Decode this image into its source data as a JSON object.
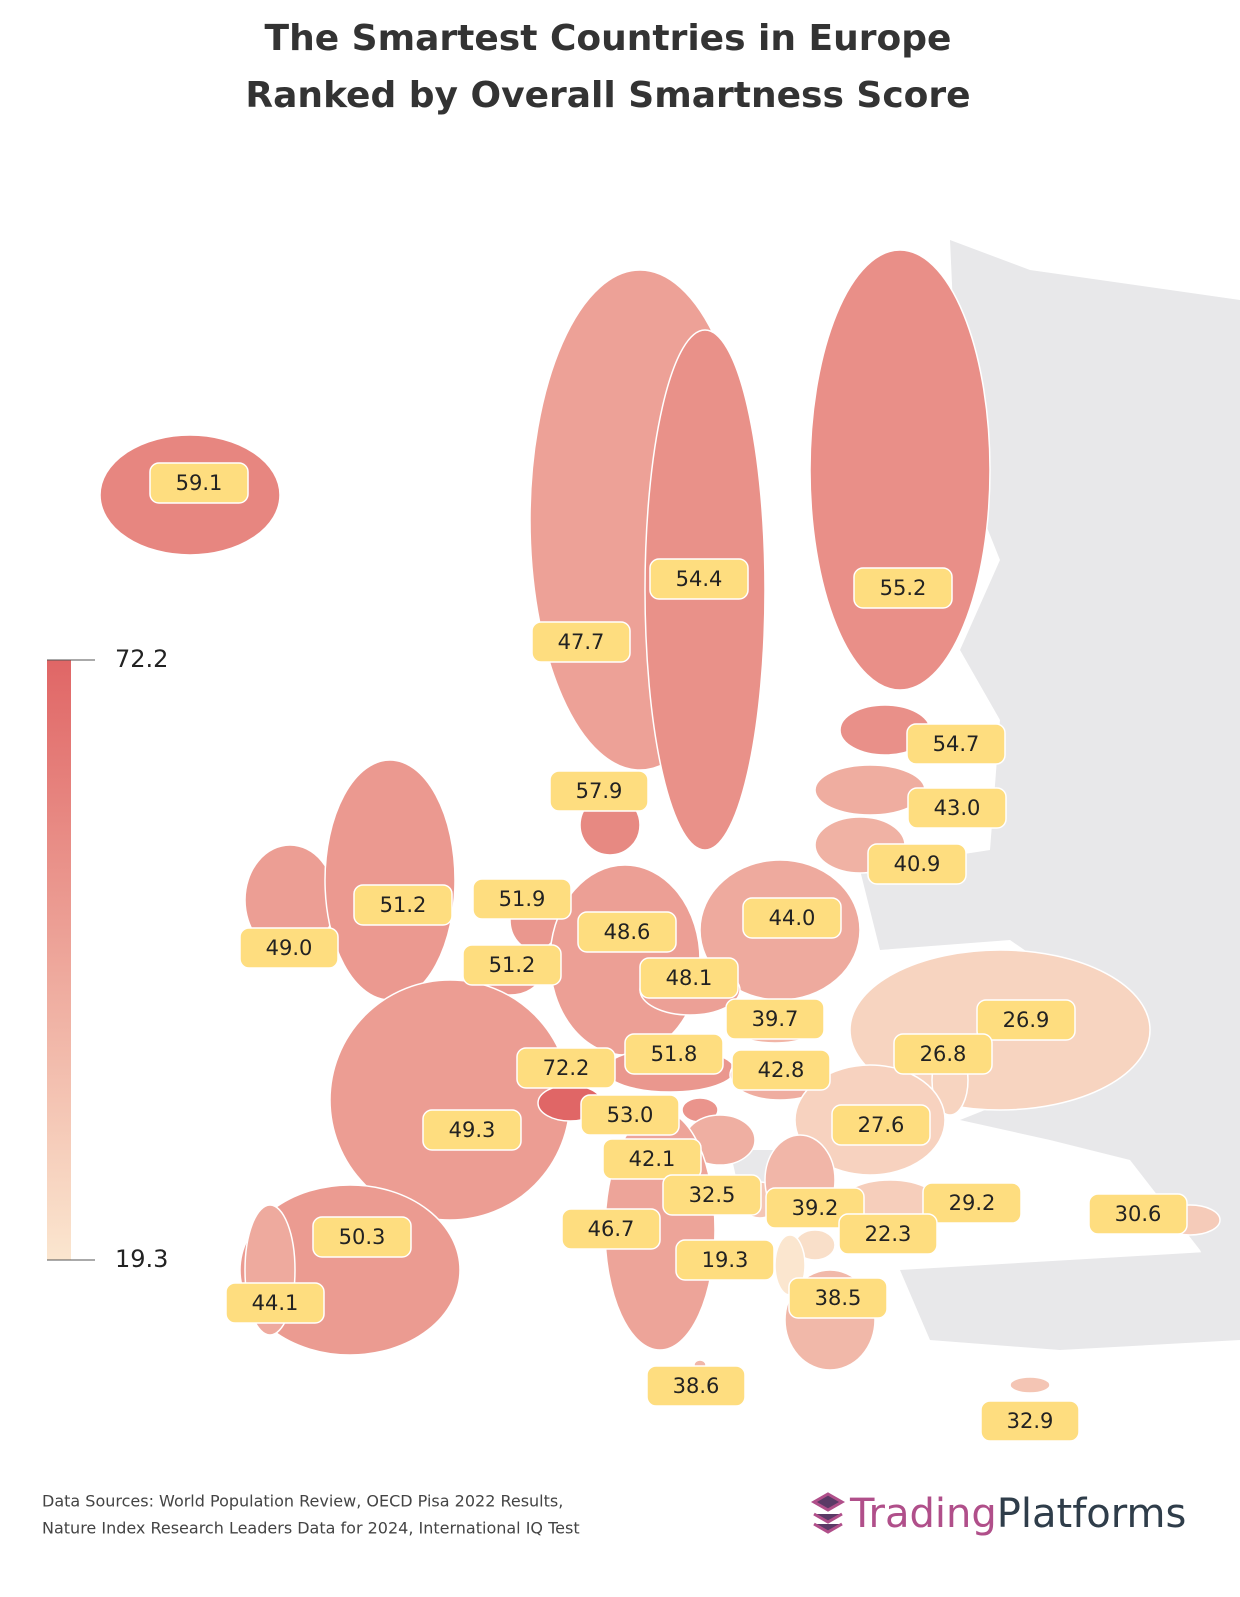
{
  "chart_data": {
    "type": "choropleth",
    "title": "The Smartest Countries in Europe",
    "subtitle": "Ranked by Overall Smartness Score",
    "values": [
      59.1,
      54.4,
      55.2,
      47.7,
      57.9,
      54.7,
      43.0,
      40.9,
      51.2,
      49.0,
      51.9,
      48.6,
      51.2,
      44.0,
      48.1,
      39.7,
      51.8,
      42.8,
      72.2,
      53.0,
      42.1,
      49.3,
      26.9,
      26.8,
      27.6,
      32.5,
      39.2,
      29.2,
      22.3,
      19.3,
      30.6,
      46.7,
      50.3,
      44.1,
      38.5,
      38.6,
      32.9
    ],
    "value_labels": [
      "59.1",
      "54.4",
      "55.2",
      "47.7",
      "57.9",
      "54.7",
      "43.0",
      "40.9",
      "51.2",
      "49.0",
      "51.9",
      "48.6",
      "51.2",
      "44.0",
      "48.1",
      "39.7",
      "51.8",
      "42.8",
      "72.2",
      "53.0",
      "42.1",
      "49.3",
      "26.9",
      "26.8",
      "27.6",
      "32.5",
      "39.2",
      "29.2",
      "22.3",
      "19.3",
      "30.6",
      "46.7",
      "50.3",
      "44.1",
      "38.5",
      "38.6",
      "32.9"
    ],
    "colors": [
      "#fbe6cf",
      "#e06666"
    ],
    "clim": [
      19.3,
      72.2
    ],
    "cticks": [
      19.3,
      72.2
    ],
    "label_color": "#fedd7f",
    "sources": [
      "Data Sources: World Population Review, OECD Pisa 2022 Results,",
      "Nature Index Research Leaders Data for 2024, International IQ Test"
    ],
    "brand": [
      "Trading",
      "Platforms"
    ]
  }
}
